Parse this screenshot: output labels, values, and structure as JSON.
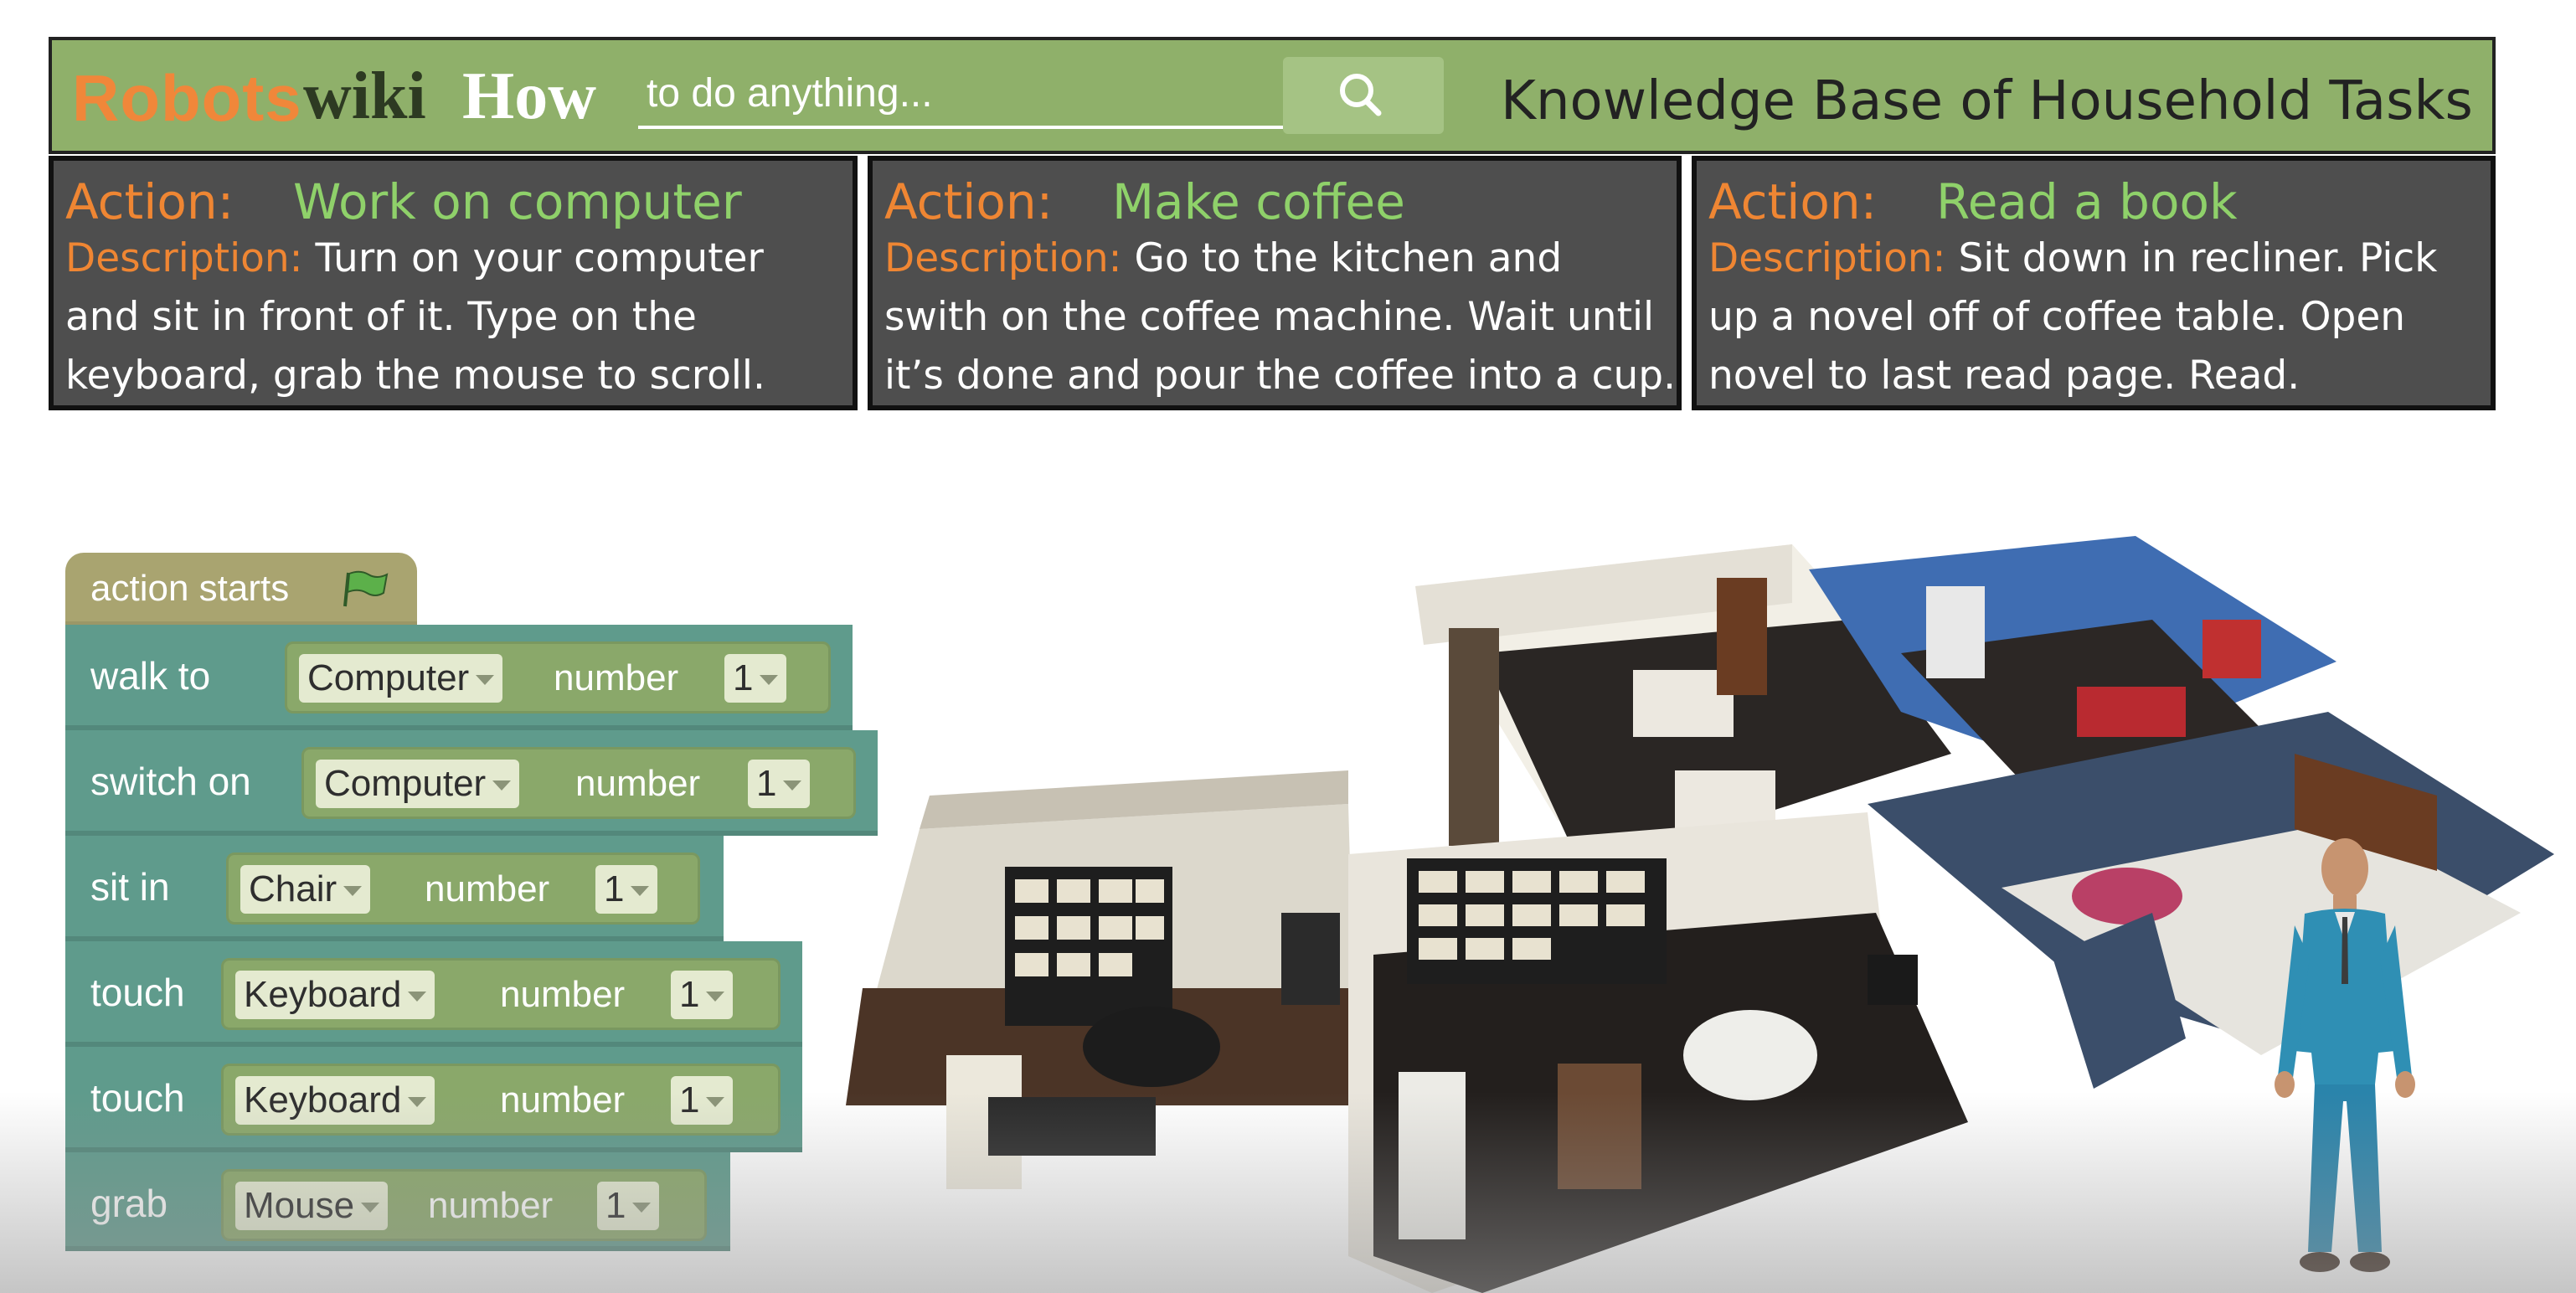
{
  "header": {
    "brand_robots": "Robots",
    "brand_wiki": "wiki",
    "brand_how": "How",
    "search_placeholder": "to do anything...",
    "search_icon": "search-icon",
    "tagline": "Knowledge Base of Household Tasks"
  },
  "cards": [
    {
      "action_key": "Action:",
      "action": "Work on computer",
      "desc_key": "Description:",
      "desc_line1": "Turn on your computer",
      "desc_line2": "and sit in front of it. Type on the",
      "desc_line3": "keyboard, grab the mouse to scroll."
    },
    {
      "action_key": "Action:",
      "action": "Make coffee",
      "desc_key": "Description:",
      "desc_line1": "Go to the kitchen and",
      "desc_line2": "swith on the coffee machine. Wait until",
      "desc_line3": "it’s done and pour the coffee into a cup."
    },
    {
      "action_key": "Action:",
      "action": "Read a book",
      "desc_key": "Description:",
      "desc_line1": "Sit down in recliner. Pick",
      "desc_line2": "up a novel off of coffee table. Open",
      "desc_line3": "novel to last read page. Read."
    }
  ],
  "program": {
    "start_label": "action starts",
    "flag_icon": "flag-icon",
    "number_label": "number",
    "steps": [
      {
        "verb": "walk  to",
        "object": "Computer",
        "number": "1"
      },
      {
        "verb": "switch on",
        "object": "Computer",
        "number": "1"
      },
      {
        "verb": "sit  in",
        "object": "Chair",
        "number": "1"
      },
      {
        "verb": "touch",
        "object": "Keyboard",
        "number": "1"
      },
      {
        "verb": "touch",
        "object": "Keyboard",
        "number": "1"
      },
      {
        "verb": "grab",
        "object": "Mouse",
        "number": "1"
      }
    ]
  },
  "colors": {
    "header_green": "#8fb06a",
    "action_orange": "#ef8633",
    "action_green": "#8fd16a",
    "card_gray": "#4e4e4e",
    "block_teal": "#5f9b8c",
    "hat_olive": "#a9a470"
  }
}
